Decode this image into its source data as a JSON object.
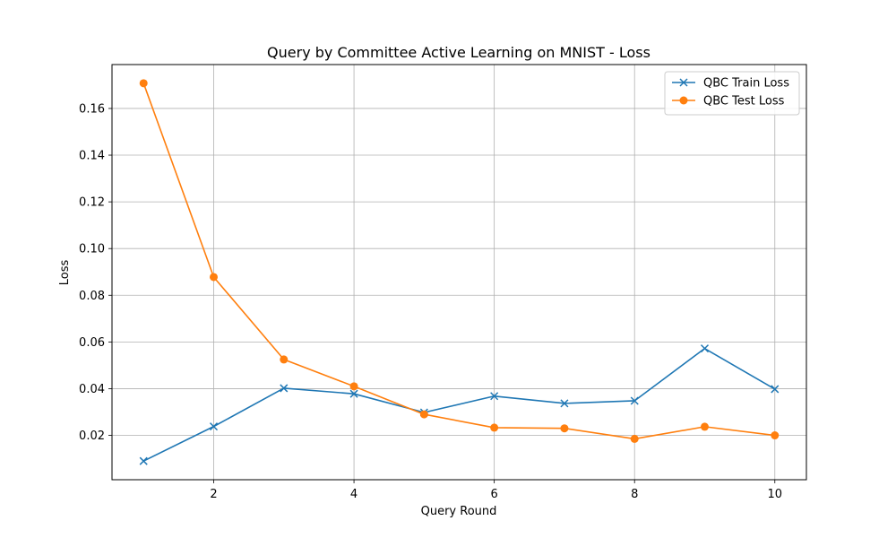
{
  "chart_data": {
    "type": "line",
    "title": "Query by Committee Active Learning on MNIST - Loss",
    "xlabel": "Query Round",
    "ylabel": "Loss",
    "x": [
      1,
      2,
      3,
      4,
      5,
      6,
      7,
      8,
      9,
      10
    ],
    "xlim": [
      0.55,
      10.45
    ],
    "ylim": [
      0.001,
      0.1788
    ],
    "xticks": [
      2,
      4,
      6,
      8,
      10
    ],
    "xtick_labels": [
      "2",
      "4",
      "6",
      "8",
      "10"
    ],
    "yticks": [
      0.02,
      0.04,
      0.06,
      0.08,
      0.1,
      0.12,
      0.14,
      0.16
    ],
    "ytick_labels": [
      "0.02",
      "0.04",
      "0.06",
      "0.08",
      "0.10",
      "0.12",
      "0.14",
      "0.16"
    ],
    "grid": true,
    "legend_position": "top-right",
    "series": [
      {
        "name": "QBC Train Loss",
        "color": "#1f77b4",
        "marker": "x",
        "values": [
          0.009,
          0.0238,
          0.0402,
          0.0378,
          0.0298,
          0.0368,
          0.0337,
          0.0348,
          0.0572,
          0.0398
        ]
      },
      {
        "name": "QBC Test Loss",
        "color": "#ff7f0e",
        "marker": "circle",
        "values": [
          0.1708,
          0.0878,
          0.0525,
          0.041,
          0.029,
          0.0233,
          0.023,
          0.0185,
          0.0237,
          0.02
        ]
      }
    ]
  }
}
